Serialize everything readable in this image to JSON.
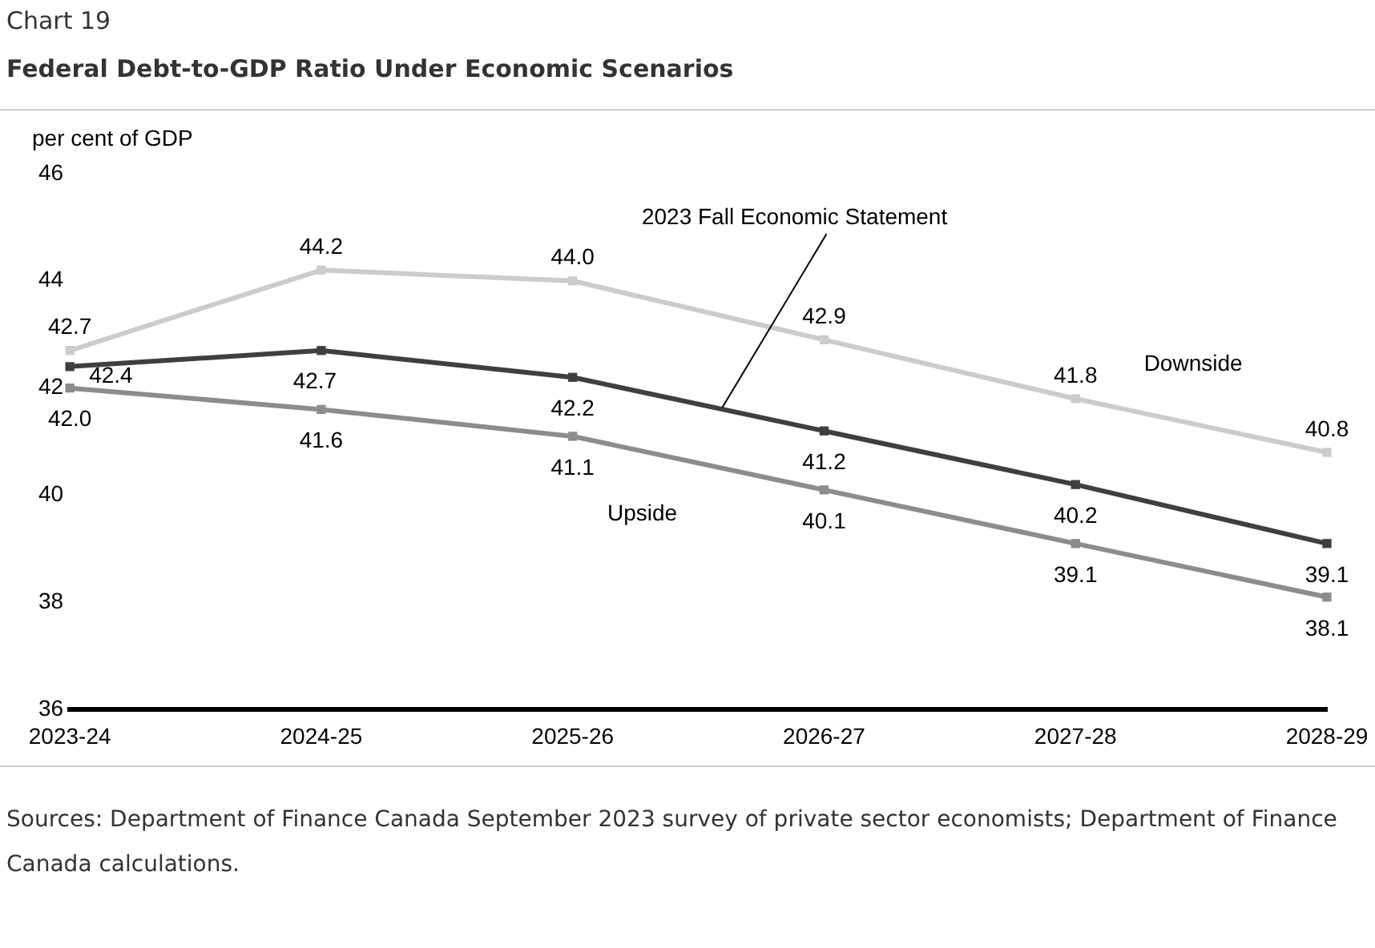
{
  "chart_data": {
    "type": "line",
    "title": "Chart 19",
    "subtitle": "Federal Debt-to-GDP Ratio Under Economic Scenarios",
    "ylabel": "per cent of GDP",
    "categories": [
      "2023-24",
      "2024-25",
      "2025-26",
      "2026-27",
      "2027-28",
      "2028-29"
    ],
    "series": [
      {
        "name": "Downside",
        "color": "#cccccc",
        "values": [
          42.7,
          44.2,
          44.0,
          42.9,
          41.8,
          40.8
        ],
        "value_labels": [
          "42.7",
          "44.2",
          "44.0",
          "42.9",
          "41.8",
          "40.8"
        ]
      },
      {
        "name": "2023 Fall Economic Statement",
        "color": "#3f3f3f",
        "values": [
          42.4,
          42.7,
          42.2,
          41.2,
          40.2,
          39.1
        ],
        "value_labels": [
          "42.4",
          "42.7",
          "42.2",
          "41.2",
          "40.2",
          "39.1"
        ]
      },
      {
        "name": "Upside",
        "color": "#8c8c8c",
        "values": [
          42.0,
          41.6,
          41.1,
          40.1,
          39.1,
          38.1
        ],
        "value_labels": [
          "42.0",
          "41.6",
          "41.1",
          "40.1",
          "39.1",
          "38.1"
        ]
      }
    ],
    "ylim": [
      36,
      46
    ],
    "yticks": [
      36,
      38,
      40,
      42,
      44,
      46
    ],
    "grid": false,
    "legend": false,
    "marker": "square",
    "line_style": "solid",
    "annotations": [
      "Sources: Department of Finance Canada September 2023 survey of private sector economists; Department of Finance Canada calculations."
    ]
  }
}
